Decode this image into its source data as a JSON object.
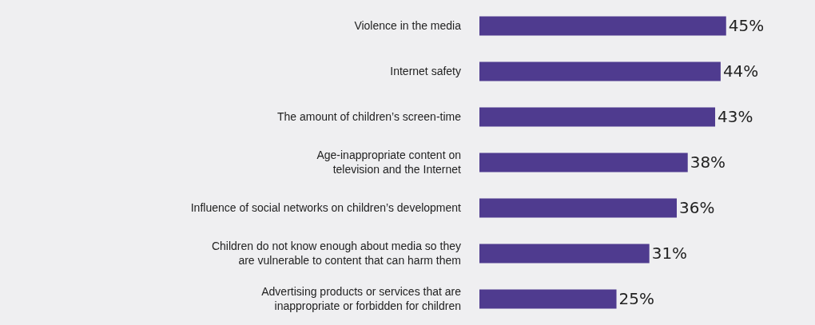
{
  "chart_data": {
    "type": "bar",
    "orientation": "horizontal",
    "categories": [
      "Violence in the media",
      "Internet safety",
      "The amount of children’s screen-time",
      "Age-inappropriate content on\ntelevision and the Internet",
      "Influence of social networks on children’s development",
      "Children do not know enough about media so they\nare vulnerable to content that can harm them",
      "Advertising products or services that are\ninappropriate or forbidden for children"
    ],
    "values": [
      45,
      44,
      43,
      38,
      36,
      31,
      25
    ],
    "value_labels": [
      "45%",
      "44%",
      "43%",
      "38%",
      "36%",
      "31%",
      "25%"
    ],
    "color": "#4f3b8f",
    "grid": false,
    "legend": false
  }
}
